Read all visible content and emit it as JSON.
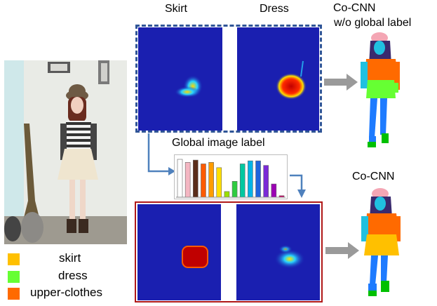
{
  "columns": {
    "skirt": "Skirt",
    "dress": "Dress"
  },
  "top_result": {
    "line1": "Co-CNN",
    "line2": "w/o global label"
  },
  "global_label": "Global image label",
  "bottom_result": "Co-CNN",
  "legend": [
    {
      "label": "skirt",
      "color": "#ffc000"
    },
    {
      "label": "dress",
      "color": "#66ff33"
    },
    {
      "label": "upper-clothes",
      "color": "#ff6a00"
    }
  ],
  "colors": {
    "heatmap_bg": "#1a1fb0",
    "top_frame": "#2f5597",
    "bottom_frame": "#b01818",
    "arrow": "#9a9a9a",
    "connector": "#4f81bd"
  },
  "histogram": {
    "bars": [
      {
        "value": 1.0,
        "color": "#ffffff"
      },
      {
        "value": 0.92,
        "color": "#f4b6c2"
      },
      {
        "value": 0.98,
        "color": "#5a2d1a"
      },
      {
        "value": 0.88,
        "color": "#ff5a00"
      },
      {
        "value": 0.92,
        "color": "#ff9d00"
      },
      {
        "value": 0.78,
        "color": "#ffe000"
      },
      {
        "value": 0.15,
        "color": "#9be000"
      },
      {
        "value": 0.42,
        "color": "#2ecc40"
      },
      {
        "value": 0.88,
        "color": "#00c8a0"
      },
      {
        "value": 0.96,
        "color": "#00b4e6"
      },
      {
        "value": 0.96,
        "color": "#1e64dc"
      },
      {
        "value": 0.84,
        "color": "#7a2ad6"
      },
      {
        "value": 0.35,
        "color": "#9b00b4"
      },
      {
        "value": 0.04,
        "color": "#cc0066"
      }
    ]
  }
}
